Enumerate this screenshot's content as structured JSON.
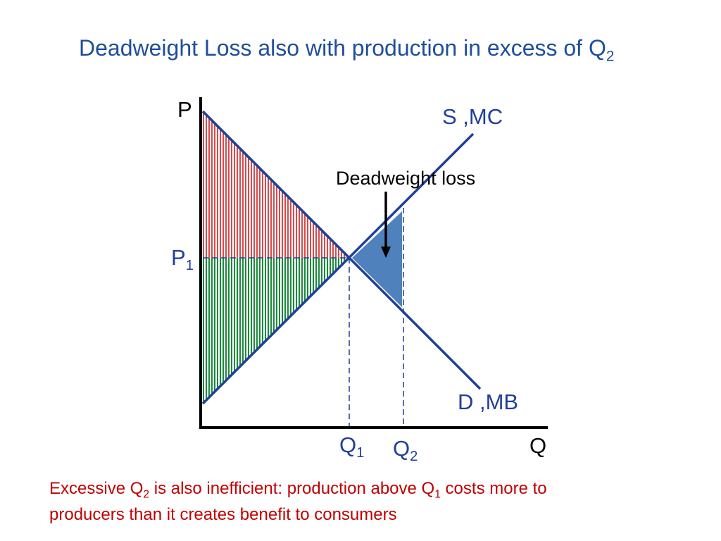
{
  "title": {
    "text": "Deadweight Loss also with production in excess of Q",
    "sub": "2"
  },
  "labels": {
    "price_axis": "P",
    "quantity_axis": "Q",
    "supply": "S ,MC",
    "demand": "D ,MB",
    "p1": {
      "main": "P",
      "sub": "1"
    },
    "q1": {
      "main": "Q",
      "sub": "1"
    },
    "q2": {
      "main": "Q",
      "sub": "2"
    },
    "deadweight_loss": "Deadweight loss"
  },
  "caption": {
    "part1": "Excessive Q",
    "sub1": "2",
    "part2": " is also inefficient: production above Q",
    "sub2": "1",
    "part3": " costs more to",
    "line2": "producers than it creates benefit to consumers"
  },
  "colors": {
    "curves": "#1f3f99",
    "title": "#1f4e9c",
    "caption": "#c00000",
    "consumer_surplus_hatch": "#c00000",
    "producer_surplus_hatch": "#1a8a3a",
    "deadweight_loss_fill": "#4f81bd"
  }
}
